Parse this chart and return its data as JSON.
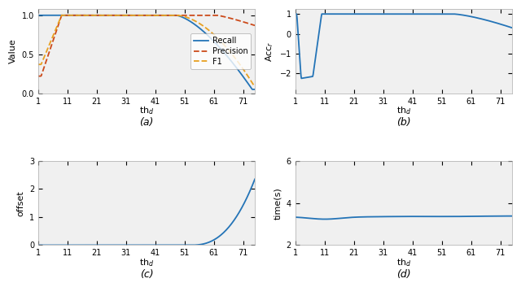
{
  "title_a": "(a)",
  "title_b": "(b)",
  "title_c": "(c)",
  "title_d": "(d)",
  "ylabel_a": "Value",
  "ylabel_b": "Acc$_r$",
  "ylabel_c": "offset",
  "ylabel_d": "time(s)",
  "line_color": "#2474b7",
  "recall_color": "#2474b7",
  "precision_color": "#cc4a1a",
  "f1_color": "#e8a020",
  "background": "#ffffff",
  "ax_bg": "#f0f0f0",
  "xticks": [
    1,
    11,
    21,
    31,
    41,
    51,
    61,
    71
  ],
  "figsize": [
    6.4,
    3.64
  ],
  "dpi": 100
}
